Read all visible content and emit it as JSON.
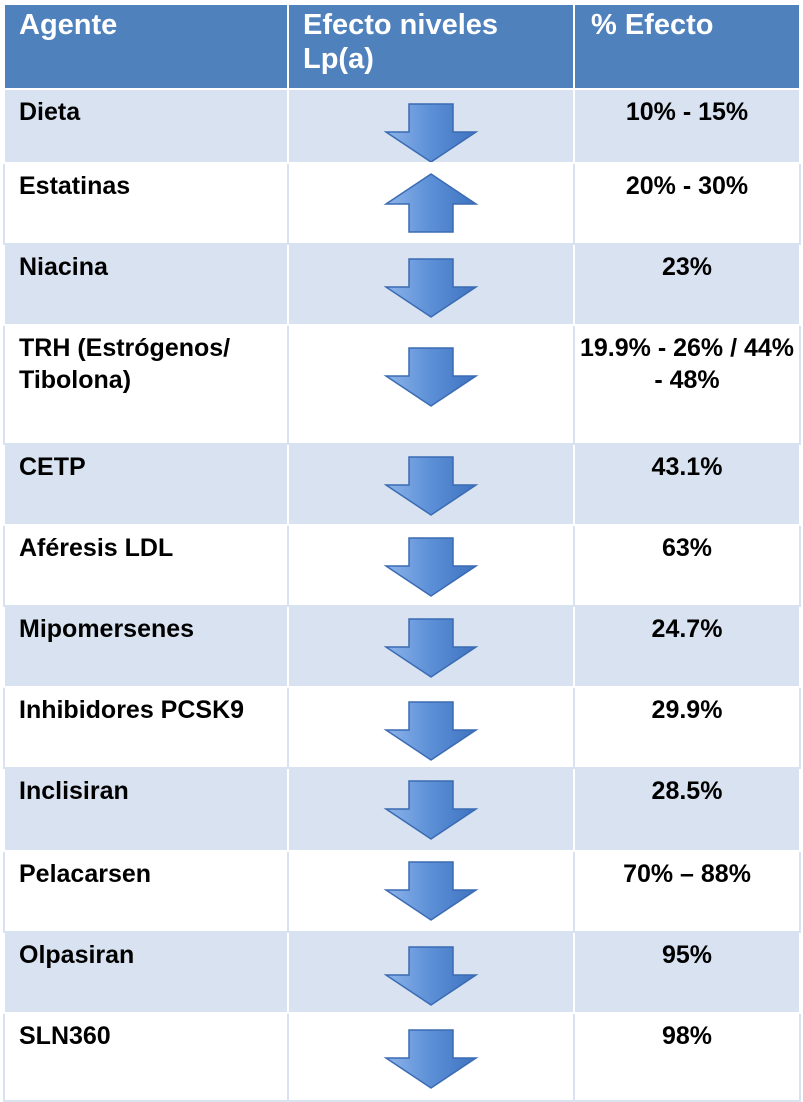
{
  "header": {
    "agent": "Agente",
    "effect": "Efecto niveles Lp(a)",
    "percent": "% Efecto"
  },
  "colors": {
    "header_bg": "#4f81bd",
    "band_bg": "#d9e2f0",
    "arrow_fill": "#5b8fd6"
  },
  "rows": [
    {
      "agent": "Dieta",
      "direction": "down",
      "percent": "10% - 15%"
    },
    {
      "agent": "Estatinas",
      "direction": "up",
      "percent": "20% - 30%"
    },
    {
      "agent": "Niacina",
      "direction": "down",
      "percent": "23%"
    },
    {
      "agent": "TRH (Estrógenos/ Tibolona)",
      "direction": "down",
      "percent": "19.9% - 26% / 44% - 48%"
    },
    {
      "agent": "CETP",
      "direction": "down",
      "percent": "43.1%"
    },
    {
      "agent": "Aféresis LDL",
      "direction": "down",
      "percent": "63%"
    },
    {
      "agent": "Mipomersenes",
      "direction": "down",
      "percent": "24.7%"
    },
    {
      "agent": "Inhibidores PCSK9",
      "direction": "down",
      "percent": "29.9%"
    },
    {
      "agent": "Inclisiran",
      "direction": "down",
      "percent": "28.5%"
    },
    {
      "agent": "Pelacarsen",
      "direction": "down",
      "percent": "70% – 88%"
    },
    {
      "agent": "Olpasiran",
      "direction": "down",
      "percent": "95%"
    },
    {
      "agent": "SLN360",
      "direction": "down",
      "percent": "98%"
    }
  ]
}
